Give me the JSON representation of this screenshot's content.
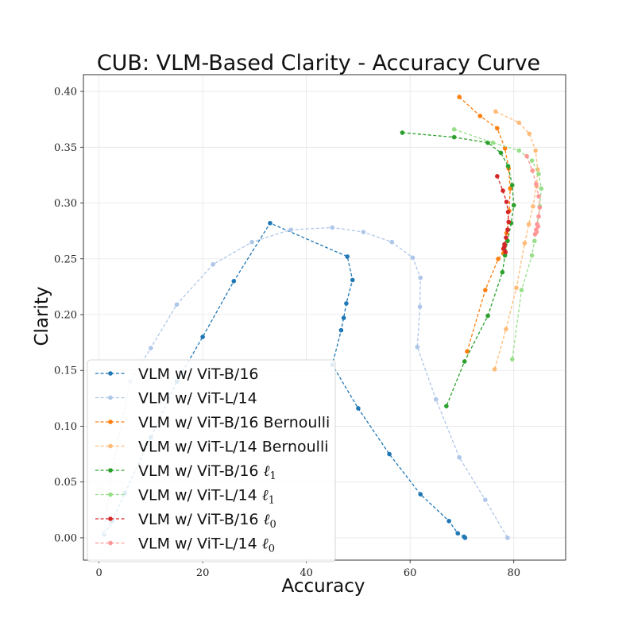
{
  "chart_data": {
    "type": "line",
    "title": "CUB: VLM-Based Clarity - Accuracy Curve",
    "xlabel": "Accuracy",
    "ylabel": "Clarity",
    "xlim": [
      -3,
      90
    ],
    "ylim": [
      -0.02,
      0.415
    ],
    "xticks": [
      0,
      20,
      40,
      60,
      80
    ],
    "yticks": [
      0.0,
      0.05,
      0.1,
      0.15,
      0.2,
      0.25,
      0.3,
      0.35,
      0.4
    ],
    "xtick_labels": [
      "0",
      "20",
      "40",
      "60",
      "80"
    ],
    "ytick_labels": [
      "0.00",
      "0.05",
      "0.10",
      "0.15",
      "0.20",
      "0.25",
      "0.30",
      "0.35",
      "0.40"
    ],
    "grid": true,
    "legend_position": "lower-left",
    "series": [
      {
        "name": "VLM w/ ViT-B/16",
        "label_main": "VLM w/ ViT-B/16",
        "label_sub": "",
        "color": "#1f77b4",
        "x": [
          1.0,
          2.5,
          5.0,
          10.0,
          15.0,
          20.0,
          26.0,
          33.0,
          47.9,
          48.9,
          47.7,
          47.2,
          46.7,
          45.0,
          50.0,
          56.0,
          62.0,
          67.5,
          69.2,
          70.4,
          70.6
        ],
        "y": [
          0.003,
          0.015,
          0.04,
          0.09,
          0.14,
          0.18,
          0.23,
          0.282,
          0.252,
          0.231,
          0.21,
          0.197,
          0.186,
          0.155,
          0.116,
          0.075,
          0.039,
          0.015,
          0.004,
          0.001,
          0.0
        ]
      },
      {
        "name": "VLM w/ ViT-L/14",
        "label_main": "VLM w/ ViT-L/14",
        "label_sub": "",
        "color": "#aec7e8",
        "x": [
          1.0,
          2.5,
          6.0,
          10.0,
          15.0,
          22.0,
          29.5,
          37.0,
          45.0,
          51.0,
          56.5,
          60.5,
          62.0,
          61.9,
          61.4,
          65.0,
          69.5,
          74.5,
          78.8
        ],
        "y": [
          0.005,
          0.06,
          0.14,
          0.17,
          0.209,
          0.245,
          0.265,
          0.276,
          0.278,
          0.274,
          0.265,
          0.251,
          0.233,
          0.207,
          0.171,
          0.124,
          0.072,
          0.034,
          0.0
        ]
      },
      {
        "name": "VLM w/ ViT-B/16 Bernoulli",
        "label_main": "VLM w/ ViT-B/16 Bernoulli",
        "label_sub": "",
        "color": "#ff7f0e",
        "x": [
          69.5,
          73.5,
          76.8,
          78.3,
          79.0,
          79.3,
          79.1,
          78.6,
          78.0,
          77.0,
          74.5,
          71.0
        ],
        "y": [
          0.395,
          0.378,
          0.367,
          0.349,
          0.331,
          0.313,
          0.293,
          0.273,
          0.255,
          0.25,
          0.222,
          0.167
        ]
      },
      {
        "name": "VLM w/ ViT-L/14 Bernoulli",
        "label_main": "VLM w/ ViT-L/14 Bernoulli",
        "label_sub": "",
        "color": "#ffbb78",
        "x": [
          76.5,
          81.0,
          83.0,
          84.2,
          84.6,
          84.4,
          83.7,
          82.9,
          82.1,
          80.5,
          78.5,
          76.3
        ],
        "y": [
          0.382,
          0.372,
          0.362,
          0.347,
          0.33,
          0.315,
          0.297,
          0.281,
          0.264,
          0.224,
          0.187,
          0.151
        ]
      },
      {
        "name": "VLM w/ ViT-B/16 ℓ1",
        "label_main": "VLM w/ ViT-B/16 ",
        "label_sub": "1",
        "color": "#2ca02c",
        "x": [
          58.5,
          68.5,
          75.0,
          77.5,
          78.9,
          79.7,
          80.0,
          79.5,
          78.8,
          78.3,
          77.8,
          75.0,
          70.5,
          67.0
        ],
        "y": [
          0.363,
          0.359,
          0.354,
          0.345,
          0.333,
          0.316,
          0.298,
          0.282,
          0.266,
          0.253,
          0.238,
          0.199,
          0.158,
          0.118
        ]
      },
      {
        "name": "VLM w/ ViT-L/14 ℓ1",
        "label_main": "VLM w/ ViT-L/14 ",
        "label_sub": "1",
        "color": "#98df8a",
        "x": [
          68.5,
          76.0,
          81.0,
          83.5,
          84.8,
          85.3,
          85.0,
          84.5,
          84.0,
          83.5,
          81.5,
          79.7
        ],
        "y": [
          0.366,
          0.354,
          0.347,
          0.338,
          0.326,
          0.313,
          0.297,
          0.281,
          0.266,
          0.253,
          0.222,
          0.16
        ]
      },
      {
        "name": "VLM w/ ViT-B/16 ℓ0",
        "label_main": "VLM w/ ViT-B/16 ",
        "label_sub": "0",
        "color": "#d62728",
        "x": [
          76.8,
          77.9,
          78.6,
          78.9,
          79.0,
          78.8,
          78.5,
          78.2,
          78.0,
          78.2,
          78.4
        ],
        "y": [
          0.324,
          0.311,
          0.301,
          0.292,
          0.283,
          0.276,
          0.269,
          0.263,
          0.259,
          0.261,
          0.256
        ]
      },
      {
        "name": "VLM w/ ViT-L/14 ℓ0",
        "label_main": "VLM w/ ViT-L/14 ",
        "label_sub": "0",
        "color": "#ff9896",
        "x": [
          82.5,
          83.6,
          84.3,
          84.8,
          85.0,
          84.8,
          84.5,
          84.3,
          84.1,
          84.4,
          84.7
        ],
        "y": [
          0.342,
          0.329,
          0.317,
          0.306,
          0.296,
          0.288,
          0.281,
          0.276,
          0.272,
          0.274,
          0.279
        ]
      }
    ]
  }
}
